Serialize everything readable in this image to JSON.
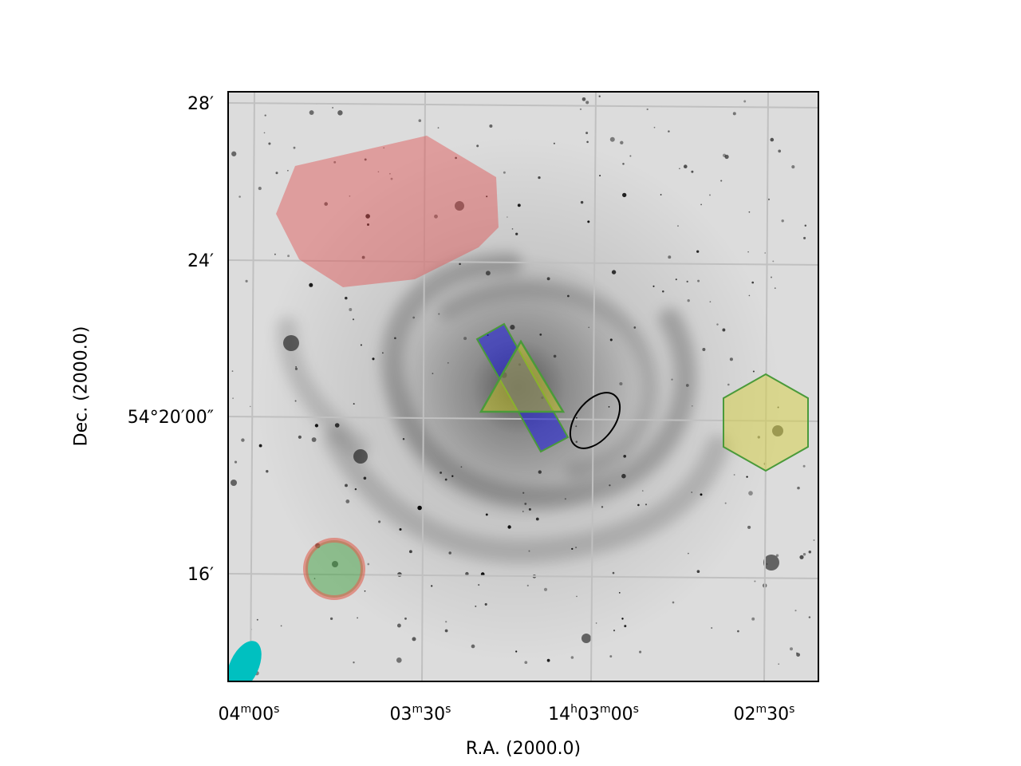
{
  "x_axis": {
    "label": "R.A. (2000.0)",
    "ticks": [
      {
        "pre": "04",
        "unit1": "m",
        "mid": "00",
        "unit2": "s"
      },
      {
        "pre": "03",
        "unit1": "m",
        "mid": "30",
        "unit2": "s"
      },
      {
        "pre": "14",
        "unit0": "h",
        "pre2": "03",
        "unit1": "m",
        "mid": "00",
        "unit2": "s"
      },
      {
        "pre": "02",
        "unit1": "m",
        "mid": "30",
        "unit2": "s"
      }
    ]
  },
  "y_axis": {
    "label": "Dec. (2000.0)",
    "ticks": [
      "28′",
      "24′",
      "54°20′00″",
      "16′"
    ]
  },
  "image": {
    "subject": "spiral galaxy (grayscale, inverted)",
    "colormap": "gray_r",
    "grid": true,
    "grid_color": "#c0c0c0"
  },
  "regions": [
    {
      "name": "red-polygon",
      "shape": "polygon",
      "fill": "#e05050",
      "opacity": 0.45
    },
    {
      "name": "blue-rectangle",
      "shape": "rotated-rectangle",
      "fill": "#2020d0",
      "edge": "#4a9a3a",
      "opacity": 0.6
    },
    {
      "name": "yellow-triangle",
      "shape": "triangle",
      "fill": "#c8c820",
      "edge": "#4a9a3a",
      "opacity": 0.5
    },
    {
      "name": "black-ellipse",
      "shape": "ellipse",
      "fill": "none",
      "edge": "#000000"
    },
    {
      "name": "yellow-hexagon",
      "shape": "hexagon",
      "fill": "#d6d040",
      "edge": "#4a9a3a",
      "opacity": 0.5
    },
    {
      "name": "green-circle",
      "shape": "circle",
      "fill": "#40a040",
      "edge": "#e06050",
      "opacity": 0.5
    },
    {
      "name": "cyan-ellipse",
      "shape": "ellipse",
      "fill": "#00c0c0",
      "opacity": 1.0
    }
  ]
}
